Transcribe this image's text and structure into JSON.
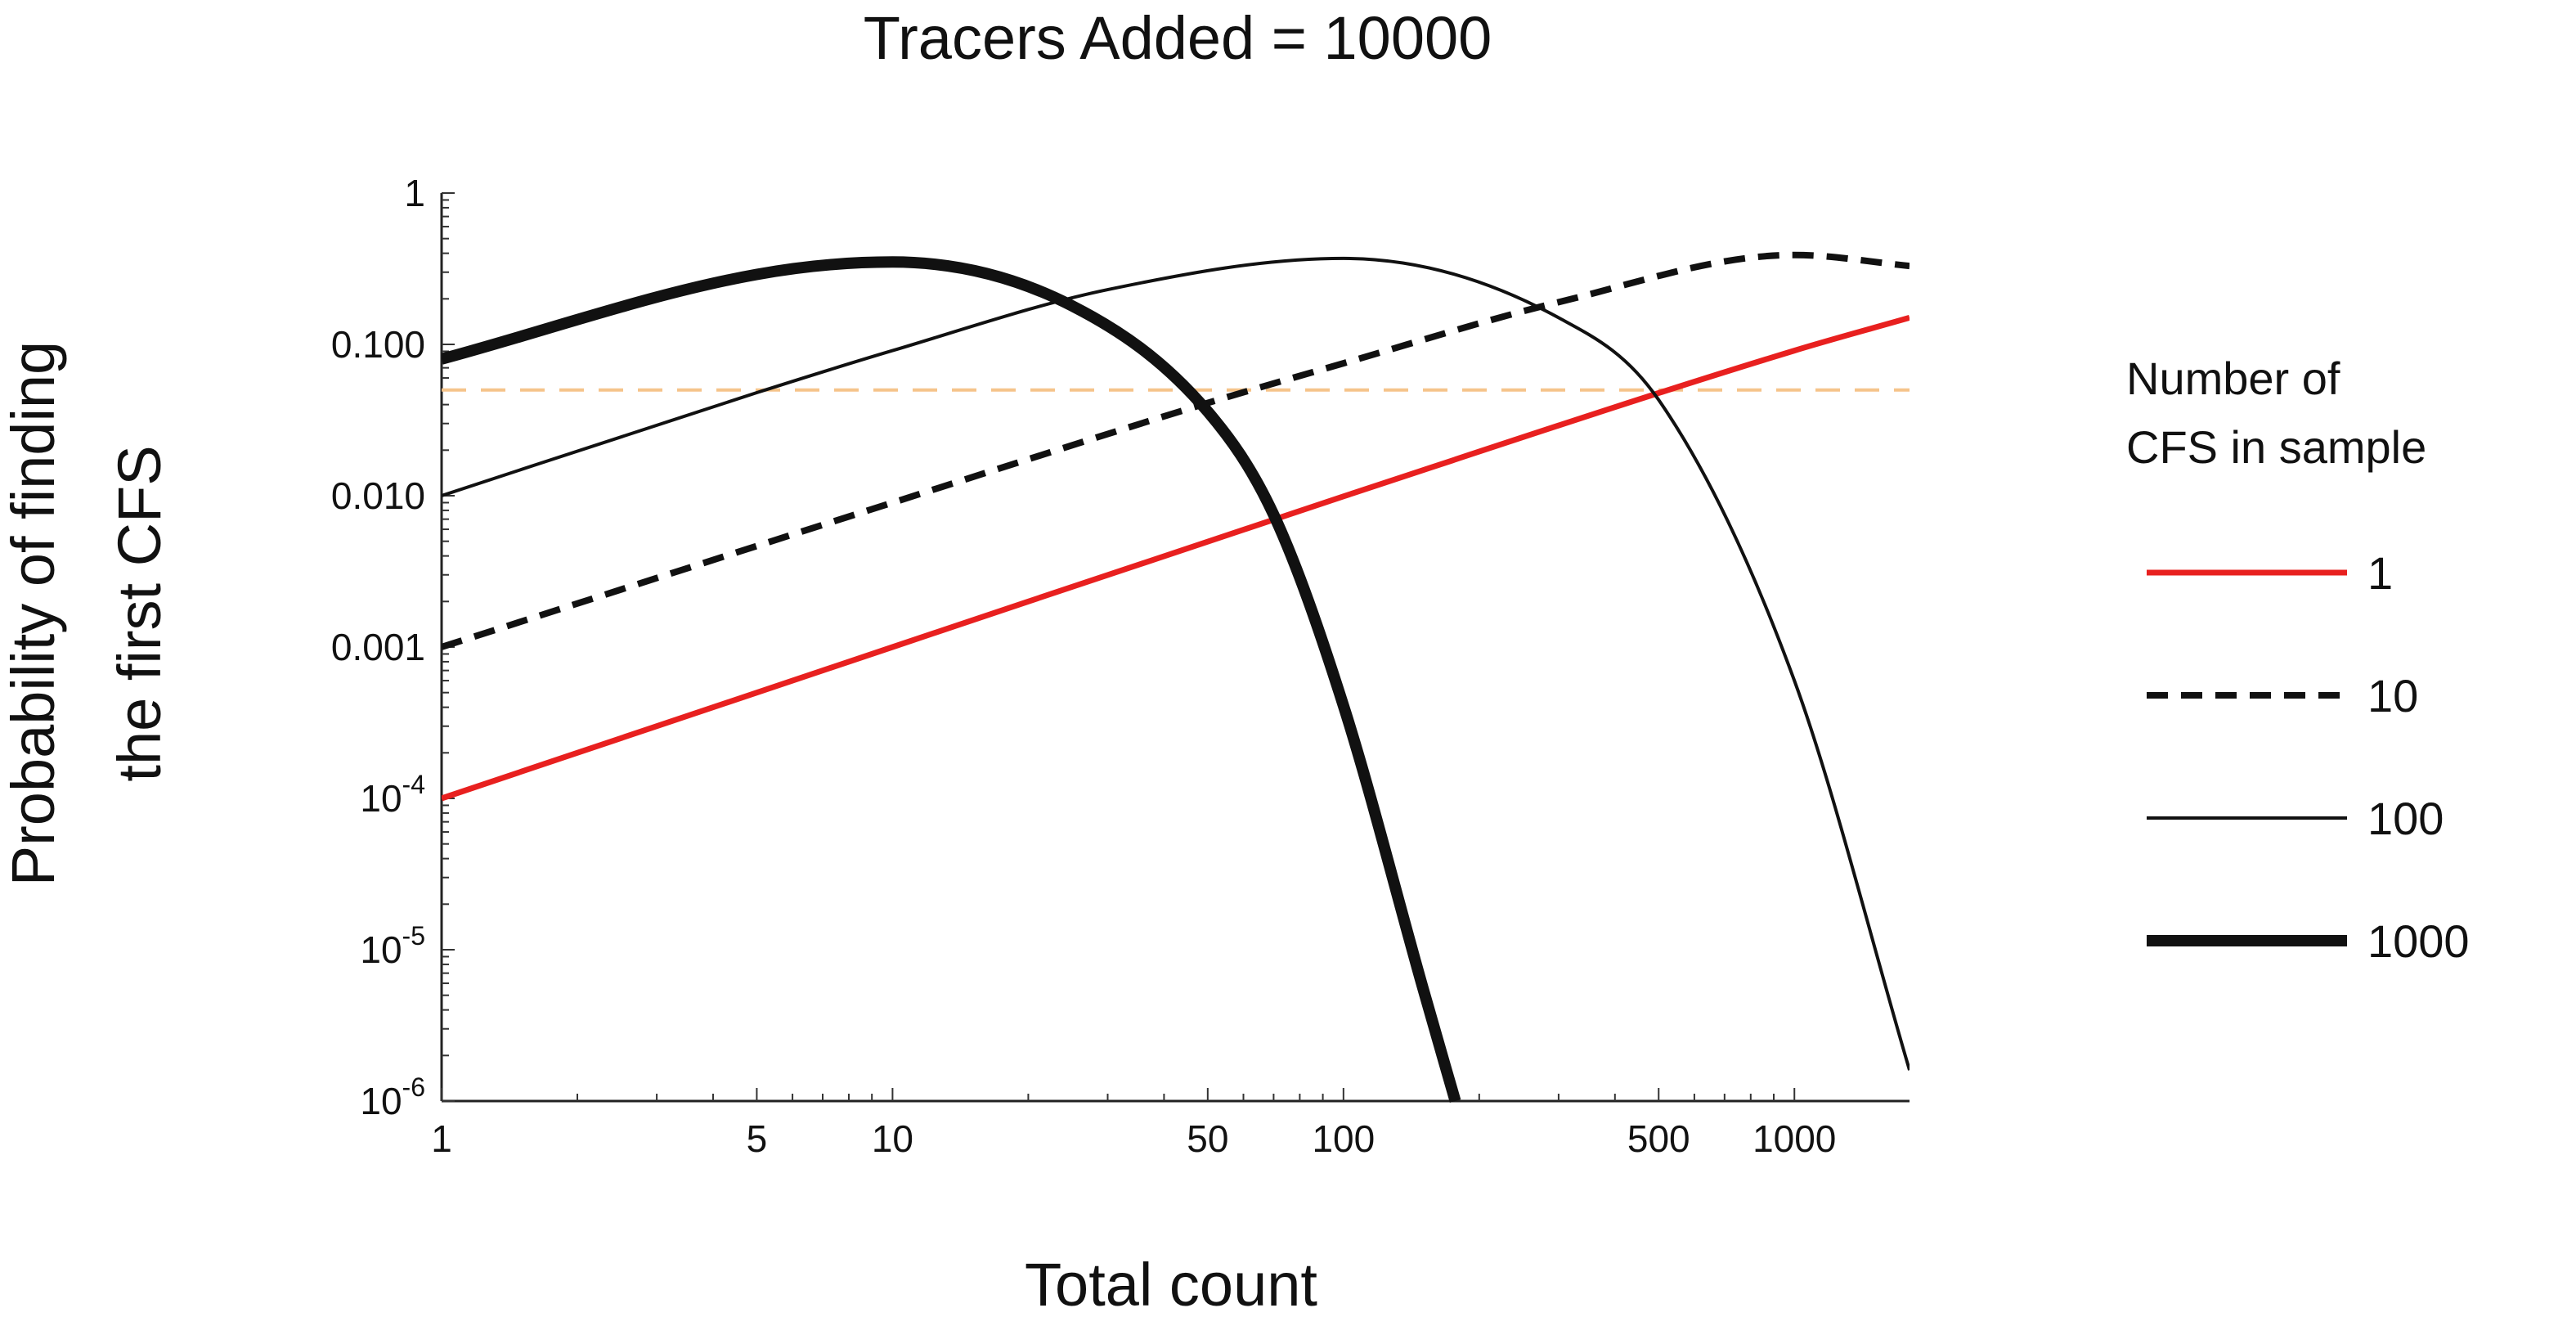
{
  "chart_data": {
    "type": "line",
    "title": "Tracers Added = 10000",
    "xlabel": "Total count",
    "ylabel": [
      "Probability of finding",
      "the first CFS"
    ],
    "x_scale": "log",
    "y_scale": "log",
    "xlim": [
      1,
      1800
    ],
    "ylim": [
      1e-06,
      1
    ],
    "x_ticks": [
      {
        "value": 1,
        "label": "1"
      },
      {
        "value": 5,
        "label": "5"
      },
      {
        "value": 10,
        "label": "10"
      },
      {
        "value": 50,
        "label": "50"
      },
      {
        "value": 100,
        "label": "100"
      },
      {
        "value": 500,
        "label": "500"
      },
      {
        "value": 1000,
        "label": "1000"
      }
    ],
    "y_ticks": [
      {
        "value": 1,
        "label": "1"
      },
      {
        "value": 0.1,
        "label": "0.100"
      },
      {
        "value": 0.01,
        "label": "0.010"
      },
      {
        "value": 0.001,
        "label": "0.001"
      },
      {
        "value": 0.0001,
        "base": "10",
        "exp": "-4"
      },
      {
        "value": 1e-05,
        "base": "10",
        "exp": "-5"
      },
      {
        "value": 1e-06,
        "base": "10",
        "exp": "-6"
      }
    ],
    "reference_line": {
      "y": 0.05,
      "color": "#f5c48a",
      "style": "dashed"
    },
    "legend": {
      "title": [
        "Number of",
        "CFS in sample"
      ],
      "placement": "right"
    },
    "series": [
      {
        "name": "1",
        "color": "#e8201f",
        "style": "solid",
        "weight": "medium",
        "x": [
          1,
          10,
          100,
          1000,
          1800
        ],
        "y": [
          0.0001,
          0.001,
          0.0099,
          0.091,
          0.15
        ]
      },
      {
        "name": "10",
        "color": "#111111",
        "style": "dashed",
        "weight": "bold",
        "x": [
          1,
          10,
          50,
          100,
          300,
          1000,
          1800
        ],
        "y": [
          0.001,
          0.009,
          0.041,
          0.075,
          0.19,
          0.39,
          0.33
        ]
      },
      {
        "name": "100",
        "color": "#111111",
        "style": "solid",
        "weight": "thin",
        "x": [
          1,
          5,
          10,
          30,
          100,
          300,
          500,
          1000,
          1800
        ],
        "y": [
          0.01,
          0.048,
          0.091,
          0.23,
          0.37,
          0.15,
          0.043,
          0.0006,
          1.6e-06
        ]
      },
      {
        "name": "1000",
        "color": "#111111",
        "style": "solid",
        "weight": "thick",
        "x": [
          1,
          5,
          10,
          25,
          50,
          70,
          100,
          150,
          177
        ],
        "y": [
          0.08,
          0.29,
          0.35,
          0.18,
          0.036,
          0.0075,
          0.00041,
          5.6e-06,
          1e-06
        ]
      }
    ]
  }
}
